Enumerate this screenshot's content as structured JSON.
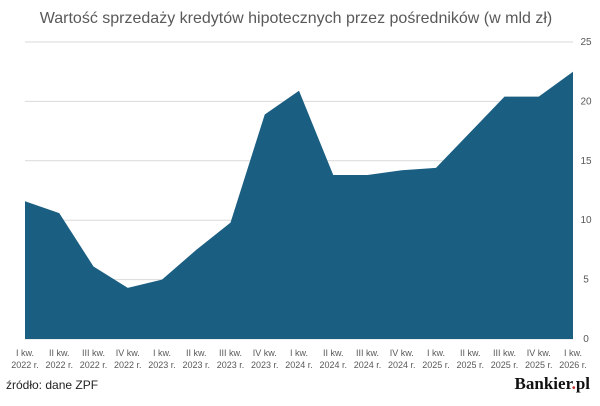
{
  "chart_data": {
    "type": "area",
    "title": "Wartość sprzedaży kredytów hipotecznych przez pośredników (w mld zł)",
    "xlabel": "",
    "ylabel": "",
    "y_axis_position": "right",
    "ylim": [
      0,
      25
    ],
    "yticks": [
      0,
      5,
      10,
      15,
      20,
      25
    ],
    "grid": true,
    "legend": "none",
    "categories": [
      [
        "I kw.",
        "2022 r."
      ],
      [
        "II kw.",
        "2022 r."
      ],
      [
        "III kw.",
        "2022 r."
      ],
      [
        "IV kw.",
        "2022 r."
      ],
      [
        "I kw.",
        "2023 r."
      ],
      [
        "II kw.",
        "2023 r."
      ],
      [
        "III kw.",
        "2023 r."
      ],
      [
        "IV kw.",
        "2023 r."
      ],
      [
        "I kw.",
        "2024 r."
      ],
      [
        "II kw.",
        "2024 r."
      ],
      [
        "III kw.",
        "2024 r."
      ],
      [
        "IV kw.",
        "2024 r."
      ],
      [
        "I kw.",
        "2025 r."
      ],
      [
        "II kw.",
        "2025 r."
      ],
      [
        "III kw.",
        "2025 r."
      ],
      [
        "IV kw.",
        "2025 r."
      ],
      [
        "I kw.",
        "2026 r."
      ]
    ],
    "values": [
      11.6,
      10.6,
      6.1,
      4.3,
      5.0,
      7.5,
      9.8,
      18.9,
      20.9,
      13.8,
      13.8,
      14.2,
      14.4,
      17.4,
      20.4,
      20.4,
      22.5
    ],
    "colors": {
      "fill": "#1a5e82",
      "grid": "#d9d9d9",
      "text": "#595959"
    }
  },
  "footer": {
    "source": "źródło: dane ZPF",
    "brand_main": "Bankier",
    "brand_dot": ".",
    "brand_suffix": "pl"
  }
}
